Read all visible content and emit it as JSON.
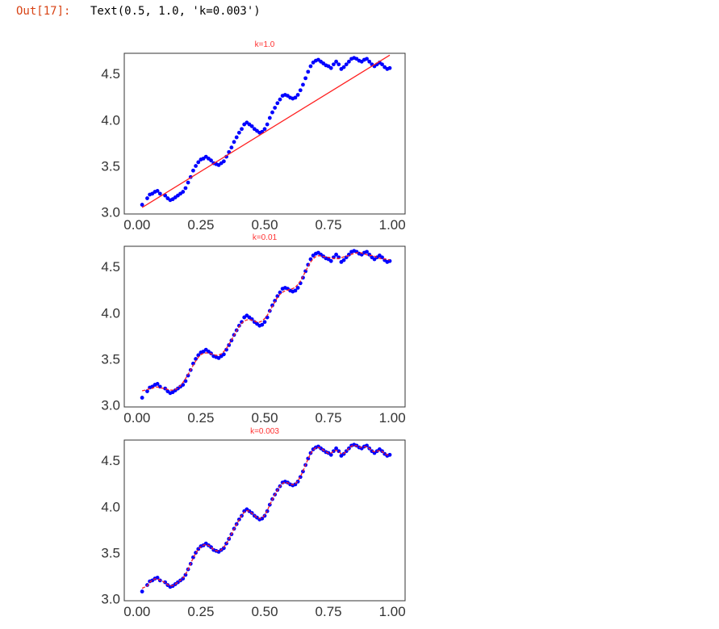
{
  "cell": {
    "prompt": "Out[17]:",
    "output": "Text(0.5, 1.0, 'k=0.003')"
  },
  "colors": {
    "points": "#0000ff",
    "fit": "#ff2020",
    "title": "#ff3030",
    "frame": "#333333"
  },
  "chart_data": [
    {
      "type": "scatter",
      "title": "k=1.0",
      "xlim": [
        -0.05,
        1.05
      ],
      "ylim": [
        2.98,
        4.72
      ],
      "xticks": [
        "0.00",
        "0.25",
        "0.50",
        "0.75",
        "1.00"
      ],
      "yticks": [
        "3.0",
        "3.5",
        "4.0",
        "4.5"
      ],
      "grid": false,
      "series": [
        {
          "kind": "points",
          "x": [
            0.02,
            0.04,
            0.05,
            0.06,
            0.07,
            0.08,
            0.09,
            0.11,
            0.12,
            0.13,
            0.14,
            0.15,
            0.16,
            0.17,
            0.18,
            0.19,
            0.2,
            0.21,
            0.22,
            0.23,
            0.24,
            0.25,
            0.26,
            0.27,
            0.28,
            0.29,
            0.3,
            0.31,
            0.32,
            0.33,
            0.34,
            0.35,
            0.36,
            0.37,
            0.38,
            0.39,
            0.4,
            0.41,
            0.42,
            0.43,
            0.44,
            0.45,
            0.46,
            0.47,
            0.48,
            0.49,
            0.5,
            0.51,
            0.52,
            0.53,
            0.54,
            0.55,
            0.56,
            0.57,
            0.58,
            0.59,
            0.6,
            0.61,
            0.62,
            0.63,
            0.64,
            0.65,
            0.66,
            0.67,
            0.68,
            0.69,
            0.7,
            0.71,
            0.72,
            0.73,
            0.74,
            0.75,
            0.76,
            0.77,
            0.78,
            0.79,
            0.8,
            0.81,
            0.82,
            0.83,
            0.84,
            0.85,
            0.86,
            0.87,
            0.88,
            0.89,
            0.9,
            0.91,
            0.92,
            0.93,
            0.94,
            0.95,
            0.96,
            0.97,
            0.98,
            0.99
          ],
          "y": [
            3.08,
            3.15,
            3.19,
            3.2,
            3.22,
            3.23,
            3.2,
            3.18,
            3.15,
            3.13,
            3.14,
            3.16,
            3.18,
            3.2,
            3.22,
            3.26,
            3.32,
            3.38,
            3.45,
            3.5,
            3.54,
            3.57,
            3.58,
            3.6,
            3.58,
            3.56,
            3.53,
            3.52,
            3.51,
            3.53,
            3.55,
            3.6,
            3.65,
            3.7,
            3.76,
            3.81,
            3.86,
            3.9,
            3.95,
            3.97,
            3.95,
            3.93,
            3.9,
            3.88,
            3.86,
            3.87,
            3.9,
            3.95,
            4.02,
            4.08,
            4.13,
            4.18,
            4.22,
            4.26,
            4.27,
            4.26,
            4.24,
            4.23,
            4.24,
            4.27,
            4.32,
            4.38,
            4.45,
            4.52,
            4.58,
            4.62,
            4.64,
            4.65,
            4.63,
            4.61,
            4.59,
            4.58,
            4.56,
            4.6,
            4.63,
            4.6,
            4.55,
            4.57,
            4.6,
            4.63,
            4.66,
            4.67,
            4.66,
            4.64,
            4.63,
            4.65,
            4.66,
            4.63,
            4.6,
            4.58,
            4.6,
            4.62,
            4.6,
            4.57,
            4.55,
            4.56
          ]
        },
        {
          "kind": "line",
          "x": [
            0.02,
            0.99
          ],
          "y": [
            3.05,
            4.7
          ]
        }
      ]
    },
    {
      "type": "scatter",
      "title": "k=0.01",
      "xlim": [
        -0.05,
        1.05
      ],
      "ylim": [
        2.98,
        4.72
      ],
      "xticks": [
        "0.00",
        "0.25",
        "0.50",
        "0.75",
        "1.00"
      ],
      "yticks": [
        "3.0",
        "3.5",
        "4.0",
        "4.5"
      ],
      "grid": false,
      "series": [
        {
          "kind": "points",
          "x": [
            0.02,
            0.04,
            0.05,
            0.06,
            0.07,
            0.08,
            0.09,
            0.11,
            0.12,
            0.13,
            0.14,
            0.15,
            0.16,
            0.17,
            0.18,
            0.19,
            0.2,
            0.21,
            0.22,
            0.23,
            0.24,
            0.25,
            0.26,
            0.27,
            0.28,
            0.29,
            0.3,
            0.31,
            0.32,
            0.33,
            0.34,
            0.35,
            0.36,
            0.37,
            0.38,
            0.39,
            0.4,
            0.41,
            0.42,
            0.43,
            0.44,
            0.45,
            0.46,
            0.47,
            0.48,
            0.49,
            0.5,
            0.51,
            0.52,
            0.53,
            0.54,
            0.55,
            0.56,
            0.57,
            0.58,
            0.59,
            0.6,
            0.61,
            0.62,
            0.63,
            0.64,
            0.65,
            0.66,
            0.67,
            0.68,
            0.69,
            0.7,
            0.71,
            0.72,
            0.73,
            0.74,
            0.75,
            0.76,
            0.77,
            0.78,
            0.79,
            0.8,
            0.81,
            0.82,
            0.83,
            0.84,
            0.85,
            0.86,
            0.87,
            0.88,
            0.89,
            0.9,
            0.91,
            0.92,
            0.93,
            0.94,
            0.95,
            0.96,
            0.97,
            0.98,
            0.99
          ],
          "y": [
            3.08,
            3.15,
            3.19,
            3.2,
            3.22,
            3.23,
            3.2,
            3.18,
            3.15,
            3.13,
            3.14,
            3.16,
            3.18,
            3.2,
            3.22,
            3.26,
            3.32,
            3.38,
            3.45,
            3.5,
            3.54,
            3.57,
            3.58,
            3.6,
            3.58,
            3.56,
            3.53,
            3.52,
            3.51,
            3.53,
            3.55,
            3.6,
            3.65,
            3.7,
            3.76,
            3.81,
            3.86,
            3.9,
            3.95,
            3.97,
            3.95,
            3.93,
            3.9,
            3.88,
            3.86,
            3.87,
            3.9,
            3.95,
            4.02,
            4.08,
            4.13,
            4.18,
            4.22,
            4.26,
            4.27,
            4.26,
            4.24,
            4.23,
            4.24,
            4.27,
            4.32,
            4.38,
            4.45,
            4.52,
            4.58,
            4.62,
            4.64,
            4.65,
            4.63,
            4.61,
            4.59,
            4.58,
            4.56,
            4.6,
            4.63,
            4.6,
            4.55,
            4.57,
            4.6,
            4.63,
            4.66,
            4.67,
            4.66,
            4.64,
            4.63,
            4.65,
            4.66,
            4.63,
            4.6,
            4.58,
            4.6,
            4.62,
            4.6,
            4.57,
            4.55,
            4.56
          ]
        },
        {
          "kind": "line",
          "smooth": 3
        }
      ]
    },
    {
      "type": "scatter",
      "title": "k=0.003",
      "xlim": [
        -0.05,
        1.05
      ],
      "ylim": [
        2.98,
        4.72
      ],
      "xticks": [
        "0.00",
        "0.25",
        "0.50",
        "0.75",
        "1.00"
      ],
      "yticks": [
        "3.0",
        "3.5",
        "4.0",
        "4.5"
      ],
      "grid": false,
      "series": [
        {
          "kind": "points",
          "x": [
            0.02,
            0.04,
            0.05,
            0.06,
            0.07,
            0.08,
            0.09,
            0.11,
            0.12,
            0.13,
            0.14,
            0.15,
            0.16,
            0.17,
            0.18,
            0.19,
            0.2,
            0.21,
            0.22,
            0.23,
            0.24,
            0.25,
            0.26,
            0.27,
            0.28,
            0.29,
            0.3,
            0.31,
            0.32,
            0.33,
            0.34,
            0.35,
            0.36,
            0.37,
            0.38,
            0.39,
            0.4,
            0.41,
            0.42,
            0.43,
            0.44,
            0.45,
            0.46,
            0.47,
            0.48,
            0.49,
            0.5,
            0.51,
            0.52,
            0.53,
            0.54,
            0.55,
            0.56,
            0.57,
            0.58,
            0.59,
            0.6,
            0.61,
            0.62,
            0.63,
            0.64,
            0.65,
            0.66,
            0.67,
            0.68,
            0.69,
            0.7,
            0.71,
            0.72,
            0.73,
            0.74,
            0.75,
            0.76,
            0.77,
            0.78,
            0.79,
            0.8,
            0.81,
            0.82,
            0.83,
            0.84,
            0.85,
            0.86,
            0.87,
            0.88,
            0.89,
            0.9,
            0.91,
            0.92,
            0.93,
            0.94,
            0.95,
            0.96,
            0.97,
            0.98,
            0.99
          ],
          "y": [
            3.08,
            3.15,
            3.19,
            3.2,
            3.22,
            3.23,
            3.2,
            3.18,
            3.15,
            3.13,
            3.14,
            3.16,
            3.18,
            3.2,
            3.22,
            3.26,
            3.32,
            3.38,
            3.45,
            3.5,
            3.54,
            3.57,
            3.58,
            3.6,
            3.58,
            3.56,
            3.53,
            3.52,
            3.51,
            3.53,
            3.55,
            3.6,
            3.65,
            3.7,
            3.76,
            3.81,
            3.86,
            3.9,
            3.95,
            3.97,
            3.95,
            3.93,
            3.9,
            3.88,
            3.86,
            3.87,
            3.9,
            3.95,
            4.02,
            4.08,
            4.13,
            4.18,
            4.22,
            4.26,
            4.27,
            4.26,
            4.24,
            4.23,
            4.24,
            4.27,
            4.32,
            4.38,
            4.45,
            4.52,
            4.58,
            4.62,
            4.64,
            4.65,
            4.63,
            4.61,
            4.59,
            4.58,
            4.56,
            4.6,
            4.63,
            4.6,
            4.55,
            4.57,
            4.6,
            4.63,
            4.66,
            4.67,
            4.66,
            4.64,
            4.63,
            4.65,
            4.66,
            4.63,
            4.6,
            4.58,
            4.6,
            4.62,
            4.6,
            4.57,
            4.55,
            4.56
          ]
        },
        {
          "kind": "line",
          "smooth": 1
        }
      ]
    }
  ]
}
